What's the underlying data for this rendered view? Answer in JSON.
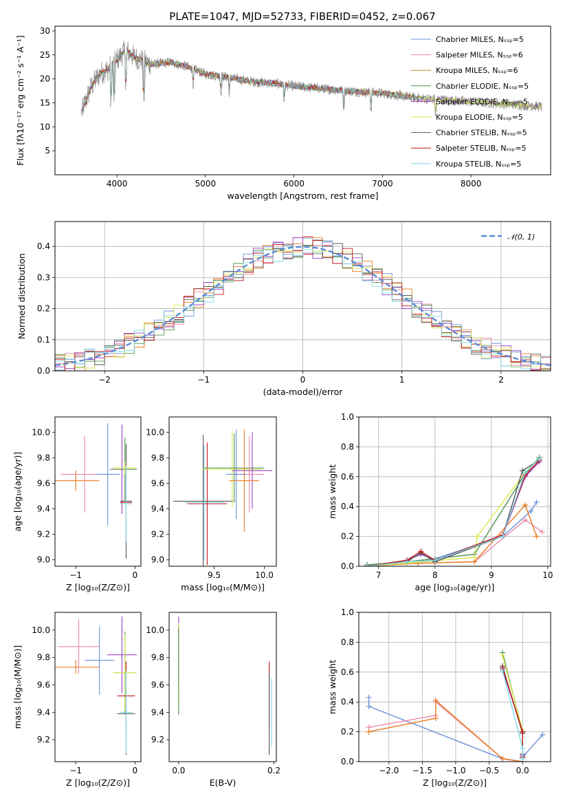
{
  "figure_title": "PLATE=1047, MJD=52733, FIBERID=0452, z=0.067",
  "colors": [
    "#6a8fd8",
    "#ee88a8",
    "#b8901a",
    "#4f9050",
    "#9a3fc2",
    "#d6e84a",
    "#555555",
    "#c01818",
    "#7fd7e6",
    "#e87a20",
    "#888888"
  ],
  "chart_data": [
    {
      "id": "spectrum",
      "type": "line",
      "xlabel": "wavelength [Angstrom, rest frame]",
      "ylabel": "Flux [fλ10⁻¹⁷ erg cm⁻² s⁻¹ A⁻¹]",
      "xlim": [
        3300,
        8900
      ],
      "ylim": [
        0,
        31
      ],
      "xticks": [
        "4000",
        "5000",
        "6000",
        "7000",
        "8000"
      ],
      "yticks": [
        "5",
        "10",
        "15",
        "20",
        "25",
        "30"
      ],
      "legend_position": "right",
      "legend": [
        "Chabrier MILES, Nₛₛₚ=5",
        "Salpeter MILES, Nₛₛₚ=6",
        "Kroupa MILES, Nₛₛₚ=6",
        "Chabrier ELODIE, Nₛₛₚ=5",
        "Salpeter ELODIE, Nₛₛₚ=5",
        "Kroupa ELODIE, Nₛₛₚ=5",
        "Chabrier STELIB, Nₛₛₚ=5",
        "Salpeter STELIB, Nₛₛₚ=5",
        "Kroupa STELIB, Nₛₛₚ=5"
      ],
      "continuum": {
        "wavelength": [
          3600,
          3700,
          3800,
          3900,
          4000,
          4100,
          4200,
          4400,
          4600,
          4800,
          5000,
          5200,
          5500,
          5800,
          6000,
          6300,
          6600,
          7000,
          7400,
          7800,
          8200,
          8600,
          8800
        ],
        "flux": [
          13,
          18,
          21,
          22,
          24,
          26,
          24.5,
          23,
          23.5,
          22.5,
          21,
          20.5,
          19.5,
          19,
          18.5,
          18,
          17.5,
          17,
          16,
          15.5,
          15,
          14.5,
          14.2
        ]
      },
      "absorption_lines_wavelength": [
        3934,
        3968,
        4102,
        4304,
        4861,
        5175,
        5270,
        5890,
        6563,
        6870,
        7600
      ]
    },
    {
      "id": "residuals",
      "type": "line",
      "xlabel": "(data-model)/error",
      "ylabel": "Normed distribution",
      "xlim": [
        -2.5,
        2.5
      ],
      "ylim": [
        0,
        0.48
      ],
      "xticks": [
        "−2",
        "−1",
        "0",
        "1",
        "2"
      ],
      "yticks": [
        "0.0",
        "0.1",
        "0.2",
        "0.3",
        "0.4"
      ],
      "grid": true,
      "legend_position": "top-right",
      "legend": [
        "𝒩(0, 1)"
      ],
      "gaussian": {
        "mean": 0,
        "sigma": 1
      }
    },
    {
      "id": "age_vs_Z",
      "type": "scatter",
      "xlabel": "Z [log₁₀(Z/Z⊙)]",
      "ylabel": "age [log₁₀(age/yr)]",
      "xlim": [
        -1.35,
        0.1
      ],
      "ylim": [
        8.95,
        10.12
      ],
      "xticks": [
        "−1",
        "0"
      ],
      "yticks": [
        "9.0",
        "9.2",
        "9.4",
        "9.6",
        "9.8",
        "10.0"
      ],
      "points": [
        {
          "x": -1.0,
          "y": 9.62,
          "xerr": 0.4,
          "yerr": 0.08,
          "c": 9
        },
        {
          "x": -0.85,
          "y": 9.67,
          "xerr": 0.4,
          "yerr": 0.3,
          "c": 1
        },
        {
          "x": -0.46,
          "y": 9.67,
          "xerr": 0.2,
          "yerr": 0.4,
          "c": 0
        },
        {
          "x": -0.22,
          "y": 9.71,
          "xerr": 0.2,
          "yerr": 0.35,
          "c": 4
        },
        {
          "x": -0.17,
          "y": 9.71,
          "xerr": 0.2,
          "yerr": 0.25,
          "c": 3
        },
        {
          "x": -0.17,
          "y": 9.72,
          "xerr": 0.2,
          "yerr": 0.05,
          "c": 5
        },
        {
          "x": -0.15,
          "y": 9.46,
          "xerr": 0.1,
          "yerr": 0.45,
          "c": 6
        },
        {
          "x": -0.15,
          "y": 9.45,
          "xerr": 0.1,
          "yerr": 0.3,
          "c": 7
        },
        {
          "x": -0.15,
          "y": 9.44,
          "xerr": 0.1,
          "yerr": 0.3,
          "c": 8
        }
      ]
    },
    {
      "id": "age_vs_mass",
      "type": "scatter",
      "xlabel": "mass [log₁₀(M/M⊙)]",
      "ylabel": "",
      "xlim": [
        9.05,
        10.12
      ],
      "ylim": [
        8.95,
        10.12
      ],
      "xticks": [
        "9.5",
        "10.0"
      ],
      "yticks": [
        "9.0",
        "9.2",
        "9.4",
        "9.6",
        "9.8",
        "10.0"
      ],
      "points": [
        {
          "x": 9.39,
          "y": 9.46,
          "xerr": 0.3,
          "yerr": 0.52,
          "c": 6
        },
        {
          "x": 9.43,
          "y": 9.44,
          "xerr": 0.2,
          "yerr": 0.48,
          "c": 7
        },
        {
          "x": 9.4,
          "y": 9.45,
          "xerr": 0.2,
          "yerr": 0.45,
          "c": 8
        },
        {
          "x": 9.7,
          "y": 9.72,
          "xerr": 0.3,
          "yerr": 0.27,
          "c": 3
        },
        {
          "x": 9.68,
          "y": 9.71,
          "xerr": 0.3,
          "yerr": 0.3,
          "c": 5
        },
        {
          "x": 9.88,
          "y": 9.7,
          "xerr": 0.2,
          "yerr": 0.3,
          "c": 4
        },
        {
          "x": 9.85,
          "y": 9.67,
          "xerr": 0.15,
          "yerr": 0.3,
          "c": 1
        },
        {
          "x": 9.8,
          "y": 9.62,
          "xerr": 0.15,
          "yerr": 0.4,
          "c": 9
        },
        {
          "x": 9.72,
          "y": 9.67,
          "xerr": 0.1,
          "yerr": 0.35,
          "c": 0
        }
      ]
    },
    {
      "id": "weight_vs_age",
      "type": "line",
      "xlabel": "age [log₁₀(age/yr)]",
      "ylabel": "mass weight",
      "xlim": [
        6.65,
        10.05
      ],
      "ylim": [
        0,
        1.0
      ],
      "xticks": [
        "7",
        "8",
        "9",
        "10"
      ],
      "yticks": [
        "0.0",
        "0.2",
        "0.4",
        "0.6",
        "0.8",
        "1.0"
      ],
      "grid": true,
      "series": [
        {
          "c": 0,
          "x": [
            6.8,
            7.5,
            8.0,
            9.2,
            9.7,
            9.8
          ],
          "y": [
            0.0,
            0.03,
            0.05,
            0.2,
            0.37,
            0.43
          ]
        },
        {
          "c": 1,
          "x": [
            6.8,
            7.7,
            8.7,
            9.6,
            9.9
          ],
          "y": [
            0.01,
            0.02,
            0.03,
            0.31,
            0.23
          ]
        },
        {
          "c": 9,
          "x": [
            6.8,
            7.7,
            8.7,
            9.6,
            9.8
          ],
          "y": [
            0.0,
            0.02,
            0.03,
            0.41,
            0.2
          ]
        },
        {
          "c": 3,
          "x": [
            6.8,
            7.5,
            8.7,
            9.6,
            9.85
          ],
          "y": [
            0.01,
            0.03,
            0.08,
            0.62,
            0.73
          ]
        },
        {
          "c": 4,
          "x": [
            6.8,
            7.5,
            7.75,
            8.0,
            9.2,
            9.6,
            9.85
          ],
          "y": [
            0.0,
            0.04,
            0.08,
            0.04,
            0.2,
            0.6,
            0.7
          ]
        },
        {
          "c": 5,
          "x": [
            6.8,
            7.5,
            8.7,
            8.75,
            9.6,
            9.85
          ],
          "y": [
            0.0,
            0.02,
            0.06,
            0.2,
            0.63,
            0.72
          ]
        },
        {
          "c": 6,
          "x": [
            6.8,
            7.5,
            7.75,
            8.0,
            9.2,
            9.55,
            9.85
          ],
          "y": [
            0.0,
            0.03,
            0.09,
            0.03,
            0.2,
            0.64,
            0.71
          ]
        },
        {
          "c": 7,
          "x": [
            6.8,
            7.5,
            7.75,
            8.0,
            9.2,
            9.6,
            9.85
          ],
          "y": [
            0.0,
            0.04,
            0.1,
            0.04,
            0.21,
            0.61,
            0.71
          ]
        },
        {
          "c": 8,
          "x": [
            6.8,
            7.5,
            8.0,
            9.2,
            9.6,
            9.85
          ],
          "y": [
            0.0,
            0.03,
            0.04,
            0.2,
            0.63,
            0.72
          ]
        }
      ]
    },
    {
      "id": "mass_vs_Z",
      "type": "scatter",
      "xlabel": "Z [log₁₀(Z/Z⊙)]",
      "ylabel": "mass [log₁₀(M/M⊙)]",
      "xlim": [
        -1.35,
        0.1
      ],
      "ylim": [
        9.04,
        10.13
      ],
      "xticks": [
        "−1",
        "0"
      ],
      "yticks": [
        "9.2",
        "9.4",
        "9.6",
        "9.8",
        "10.0"
      ],
      "points": [
        {
          "x": -1.0,
          "y": 9.73,
          "xerr": 0.4,
          "yerr": 0.05,
          "c": 9
        },
        {
          "x": -0.95,
          "y": 9.88,
          "xerr": 0.35,
          "yerr": 0.2,
          "c": 1
        },
        {
          "x": -0.6,
          "y": 9.78,
          "xerr": 0.25,
          "yerr": 0.25,
          "c": 0
        },
        {
          "x": -0.22,
          "y": 9.82,
          "xerr": 0.25,
          "yerr": 0.28,
          "c": 4
        },
        {
          "x": -0.17,
          "y": 9.69,
          "xerr": 0.2,
          "yerr": 0.3,
          "c": 3
        },
        {
          "x": -0.17,
          "y": 9.69,
          "xerr": 0.2,
          "yerr": 0.28,
          "c": 5
        },
        {
          "x": -0.15,
          "y": 9.39,
          "xerr": 0.15,
          "yerr": 0.3,
          "c": 6
        },
        {
          "x": -0.15,
          "y": 9.52,
          "xerr": 0.15,
          "yerr": 0.25,
          "c": 7
        },
        {
          "x": -0.15,
          "y": 9.4,
          "xerr": 0.1,
          "yerr": 0.3,
          "c": 8
        }
      ]
    },
    {
      "id": "mass_vs_ebv",
      "type": "scatter",
      "xlabel": "E(B-V)",
      "ylabel": "",
      "xlim": [
        -0.02,
        0.205
      ],
      "ylim": [
        9.04,
        10.13
      ],
      "xticks": [
        "0.0",
        "0.2"
      ],
      "yticks": [
        "9.2",
        "9.4",
        "9.6",
        "9.8",
        "10.0"
      ],
      "points": [
        {
          "x": 0.0,
          "y": 9.85,
          "xerr": 0,
          "yerr": 0.25,
          "c": 4
        },
        {
          "x": 0.0,
          "y": 9.75,
          "xerr": 0,
          "yerr": 0.3,
          "c": 5
        },
        {
          "x": 0.0,
          "y": 9.7,
          "xerr": 0,
          "yerr": 0.32,
          "c": 3
        },
        {
          "x": 0.19,
          "y": 9.52,
          "xerr": 0,
          "yerr": 0.25,
          "c": 7
        },
        {
          "x": 0.195,
          "y": 9.4,
          "xerr": 0,
          "yerr": 0.25,
          "c": 8
        },
        {
          "x": 0.19,
          "y": 9.39,
          "xerr": 0,
          "yerr": 0.3,
          "c": 6
        }
      ]
    },
    {
      "id": "weight_vs_Z",
      "type": "line",
      "xlabel": "Z [log₁₀(Z/Z⊙)]",
      "ylabel": "mass weight",
      "xlim": [
        -2.45,
        0.42
      ],
      "ylim": [
        0,
        1.0
      ],
      "xticks": [
        "−2.0",
        "−1.5",
        "−1.0",
        "−0.5",
        "0.0"
      ],
      "yticks": [
        "0.0",
        "0.2",
        "0.4",
        "0.6",
        "0.8",
        "1.0"
      ],
      "grid": true,
      "series": [
        {
          "c": 0,
          "x": [
            -2.3,
            -2.3,
            -0.3,
            0.0,
            0.0,
            0.3
          ],
          "y": [
            0.43,
            0.37,
            0.02,
            0.0,
            0.03,
            0.18
          ]
        },
        {
          "c": 1,
          "x": [
            -2.3,
            -1.3,
            -1.3,
            -0.3,
            0.0
          ],
          "y": [
            0.23,
            0.31,
            0.4,
            0.02,
            0.0
          ]
        },
        {
          "c": 9,
          "x": [
            -2.3,
            -1.3,
            -1.3,
            -0.3,
            0.0
          ],
          "y": [
            0.2,
            0.29,
            0.41,
            0.02,
            0.0
          ]
        },
        {
          "c": 3,
          "x": [
            -0.3,
            0.0,
            0.0
          ],
          "y": [
            0.73,
            0.2,
            0.02
          ]
        },
        {
          "c": 5,
          "x": [
            -0.3,
            0.0,
            0.0
          ],
          "y": [
            0.71,
            0.21,
            0.03
          ]
        },
        {
          "c": 4,
          "x": [
            -0.3,
            0.0,
            0.0
          ],
          "y": [
            0.62,
            0.2,
            0.04
          ]
        },
        {
          "c": 6,
          "x": [
            -0.3,
            0.0,
            0.0
          ],
          "y": [
            0.64,
            0.19,
            0.05
          ]
        },
        {
          "c": 7,
          "x": [
            -0.3,
            0.0,
            0.0
          ],
          "y": [
            0.63,
            0.2,
            0.03
          ]
        },
        {
          "c": 8,
          "x": [
            -0.3,
            0.0,
            0.0
          ],
          "y": [
            0.61,
            0.09,
            0.02
          ]
        }
      ]
    }
  ]
}
